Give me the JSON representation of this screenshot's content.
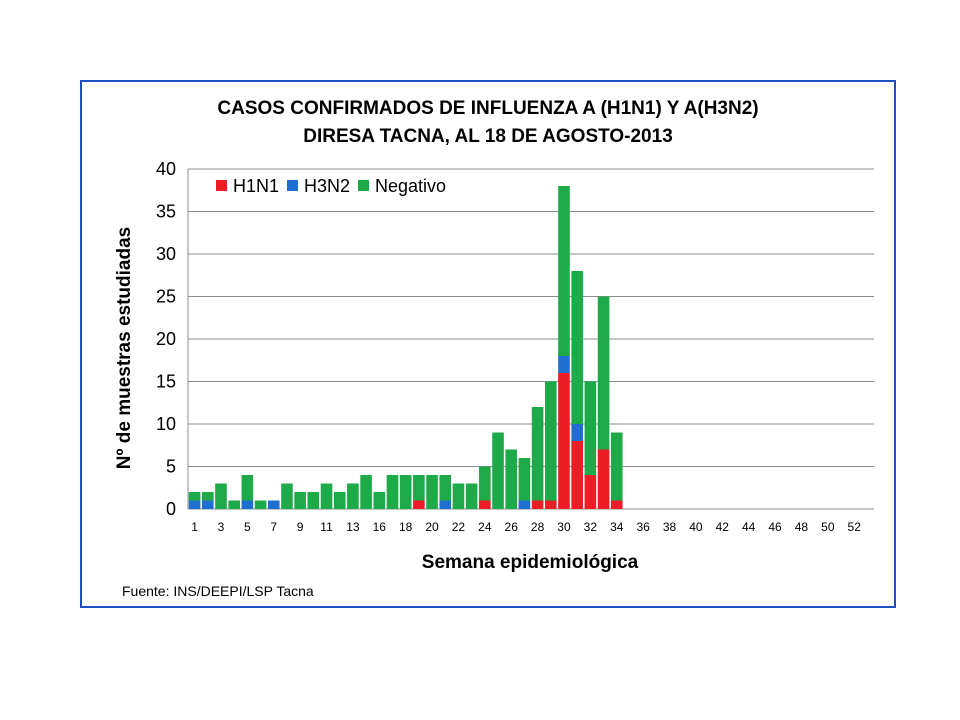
{
  "chart_data": {
    "type": "bar",
    "stacked": true,
    "title": "CASOS CONFIRMADOS DE INFLUENZA A (H1N1)  Y A(H3N2)",
    "subtitle": "DIRESA TACNA, AL 18  DE AGOSTO-2013",
    "xlabel": "Semana epidemiológica",
    "ylabel": "Nº  de muestras estudiadas",
    "ylim": [
      0,
      40
    ],
    "yticks": [
      0,
      5,
      10,
      15,
      20,
      25,
      30,
      35,
      40
    ],
    "grid": true,
    "legend_position": "top-left",
    "source": "Fuente: INS/DEEPI/LSP Tacna",
    "categories": [
      1,
      2,
      3,
      4,
      5,
      6,
      7,
      8,
      9,
      10,
      11,
      12,
      13,
      14,
      15,
      16,
      17,
      18,
      19,
      20,
      21,
      22,
      23,
      24,
      25,
      26,
      27,
      28,
      29,
      30,
      31,
      32,
      33,
      34,
      35,
      36,
      37,
      38,
      39,
      40,
      41,
      42,
      43,
      44,
      45,
      46,
      47,
      48,
      49,
      50,
      51,
      52
    ],
    "xtick_labels": [
      "1",
      "3",
      "5",
      "7",
      "9",
      "11",
      "13",
      "16",
      "18",
      "20",
      "22",
      "24",
      "26",
      "28",
      "30",
      "32",
      "34",
      "36",
      "38",
      "40",
      "42",
      "44",
      "46",
      "48",
      "50",
      "52"
    ],
    "series": [
      {
        "name": "H1N1",
        "color": "#ee1c25",
        "values": [
          0,
          0,
          0,
          0,
          0,
          0,
          0,
          0,
          0,
          0,
          0,
          0,
          0,
          0,
          0,
          0,
          0,
          1,
          0,
          0,
          0,
          0,
          1,
          0,
          0,
          0,
          1,
          1,
          16,
          8,
          4,
          7,
          1,
          0,
          0,
          0,
          0,
          0,
          0,
          0,
          0,
          0,
          0,
          0,
          0,
          0,
          0,
          0,
          0,
          0,
          0,
          0
        ]
      },
      {
        "name": "H3N2",
        "color": "#1f6fd0",
        "values": [
          1,
          1,
          0,
          0,
          1,
          0,
          1,
          0,
          0,
          0,
          0,
          0,
          0,
          0,
          0,
          0,
          0,
          0,
          0,
          1,
          0,
          0,
          0,
          0,
          0,
          1,
          0,
          0,
          2,
          2,
          0,
          0,
          0,
          0,
          0,
          0,
          0,
          0,
          0,
          0,
          0,
          0,
          0,
          0,
          0,
          0,
          0,
          0,
          0,
          0,
          0,
          0
        ]
      },
      {
        "name": "Negativo",
        "color": "#1faa4a",
        "values": [
          1,
          1,
          3,
          1,
          3,
          1,
          0,
          3,
          2,
          2,
          3,
          2,
          3,
          4,
          2,
          4,
          4,
          3,
          4,
          3,
          3,
          3,
          4,
          9,
          7,
          5,
          11,
          14,
          20,
          18,
          11,
          18,
          8,
          0,
          0,
          0,
          0,
          0,
          0,
          0,
          0,
          0,
          0,
          0,
          0,
          0,
          0,
          0,
          0,
          0,
          0,
          0
        ]
      }
    ]
  }
}
